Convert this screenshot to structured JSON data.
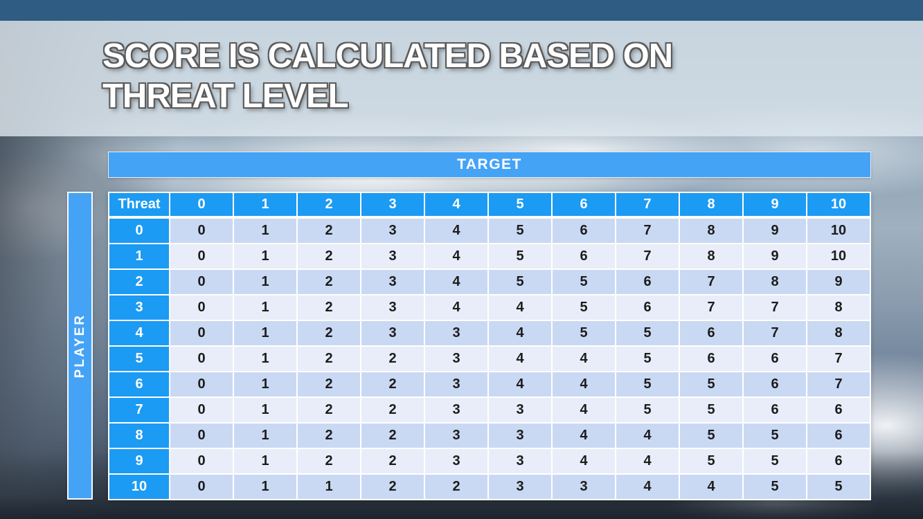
{
  "slide": {
    "title_line1": "SCORE IS CALCULATED BASED ON",
    "title_line2": "THREAT LEVEL"
  },
  "matrix": {
    "target_label": "TARGET",
    "player_label": "PLAYER",
    "corner_label": "Threat",
    "column_headers": [
      "0",
      "1",
      "2",
      "3",
      "4",
      "5",
      "6",
      "7",
      "8",
      "9",
      "10"
    ],
    "rows": [
      {
        "header": "0",
        "values": [
          0,
          1,
          2,
          3,
          4,
          5,
          6,
          7,
          8,
          9,
          10
        ]
      },
      {
        "header": "1",
        "values": [
          0,
          1,
          2,
          3,
          4,
          5,
          6,
          7,
          8,
          9,
          10
        ]
      },
      {
        "header": "2",
        "values": [
          0,
          1,
          2,
          3,
          4,
          5,
          5,
          6,
          7,
          8,
          9
        ]
      },
      {
        "header": "3",
        "values": [
          0,
          1,
          2,
          3,
          4,
          4,
          5,
          6,
          7,
          7,
          8
        ]
      },
      {
        "header": "4",
        "values": [
          0,
          1,
          2,
          3,
          3,
          4,
          5,
          5,
          6,
          7,
          8
        ]
      },
      {
        "header": "5",
        "values": [
          0,
          1,
          2,
          2,
          3,
          4,
          4,
          5,
          6,
          6,
          7
        ]
      },
      {
        "header": "6",
        "values": [
          0,
          1,
          2,
          2,
          3,
          4,
          4,
          5,
          5,
          6,
          7
        ]
      },
      {
        "header": "7",
        "values": [
          0,
          1,
          2,
          2,
          3,
          3,
          4,
          5,
          5,
          6,
          6
        ]
      },
      {
        "header": "8",
        "values": [
          0,
          1,
          2,
          2,
          3,
          3,
          4,
          4,
          5,
          5,
          6
        ]
      },
      {
        "header": "9",
        "values": [
          0,
          1,
          2,
          2,
          3,
          3,
          4,
          4,
          5,
          5,
          6
        ]
      },
      {
        "header": "10",
        "values": [
          0,
          1,
          1,
          2,
          2,
          3,
          3,
          4,
          4,
          5,
          5
        ]
      }
    ]
  },
  "colors": {
    "top_bar": "#2e5c82",
    "table_header_blue": "#1b9bf3",
    "band_blue": "#45a3f6",
    "row_even": "#c9d9f3",
    "row_odd": "#e8edf9",
    "cell_text": "#1c1c1c",
    "title_text": "#ffffff",
    "title_outline": "#5a5a5a"
  }
}
